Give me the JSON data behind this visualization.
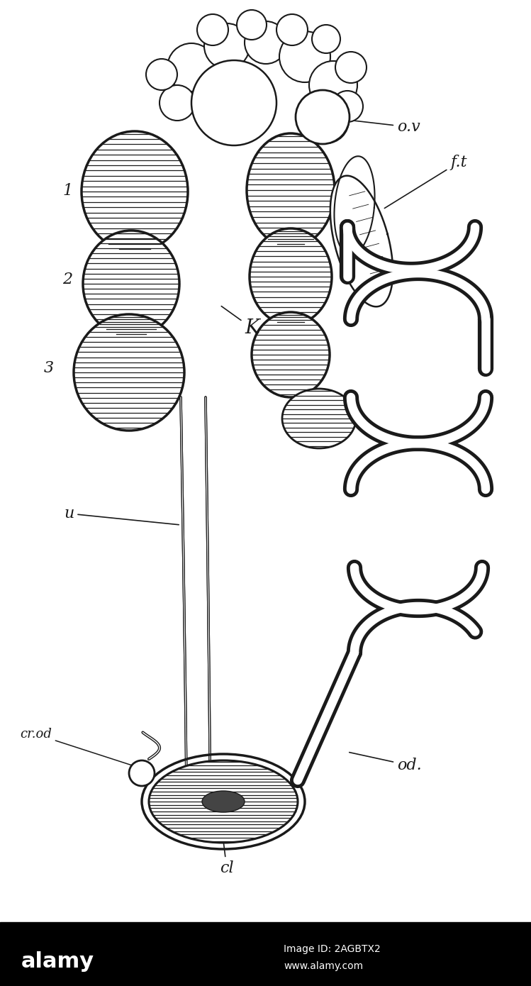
{
  "bg_color": "#ffffff",
  "line_color": "#1a1a1a",
  "labels": {
    "ov": "o.v",
    "ft": "f.t",
    "K": "K",
    "n1": "1",
    "n2": "2",
    "n3": "3",
    "u": "u",
    "cr_od": "cr.od",
    "od": "od.",
    "cl": "cl"
  },
  "watermark_text1": "alamy",
  "watermark_text2": "Image ID: 2AGBTX2",
  "watermark_text3": "www.alamy.com",
  "fig_w": 7.49,
  "fig_h": 13.9,
  "dpi": 100
}
